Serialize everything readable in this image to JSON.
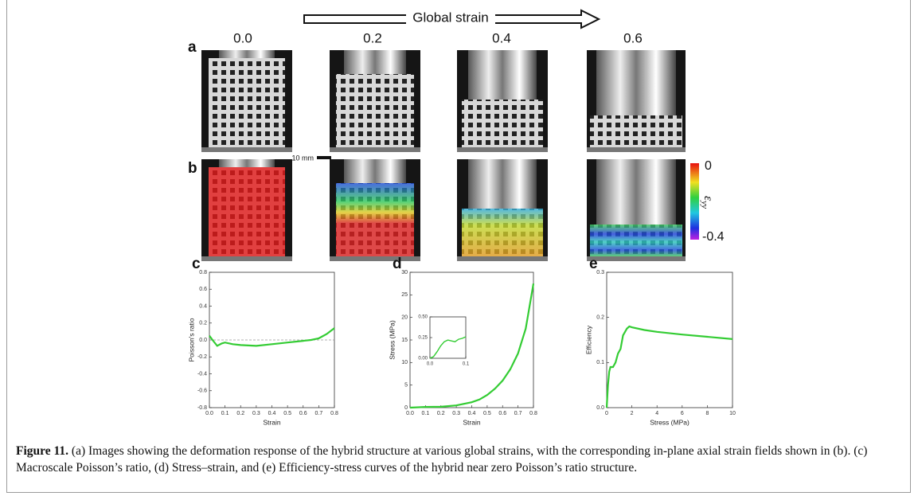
{
  "figure": {
    "arrow_label": "Global strain",
    "strain_labels": [
      "0.0",
      "0.2",
      "0.4",
      "0.6"
    ],
    "row_labels": [
      "a",
      "b"
    ],
    "scale_bar": "10 mm",
    "colorbar": {
      "max_label": "0",
      "min_label": "-0.4",
      "symbol": "ε",
      "subscript": "yy"
    }
  },
  "chart_data": [
    {
      "type": "line",
      "label": "c",
      "xlabel": "Strain",
      "ylabel": "Poisson's ratio",
      "color": "#33cc33",
      "xlim": [
        0,
        0.8
      ],
      "ylim": [
        -0.8,
        0.8
      ],
      "xticks": [
        {
          "value": 0,
          "label": "0.0"
        },
        0.1,
        0.2,
        0.3,
        0.4,
        0.5,
        0.6,
        0.7,
        0.8
      ],
      "yticks": [
        -0.8,
        -0.6,
        -0.4,
        -0.2,
        {
          "value": 0,
          "label": "0.0"
        },
        0.2,
        0.4,
        0.6,
        0.8
      ],
      "hline": 0,
      "x": [
        0,
        0.02,
        0.05,
        0.08,
        0.1,
        0.15,
        0.2,
        0.3,
        0.4,
        0.5,
        0.6,
        0.65,
        0.7,
        0.75,
        0.8
      ],
      "values": [
        0.05,
        0.0,
        -0.07,
        -0.04,
        -0.03,
        -0.05,
        -0.06,
        -0.07,
        -0.05,
        -0.03,
        -0.01,
        0.0,
        0.02,
        0.07,
        0.14
      ]
    },
    {
      "type": "line",
      "label": "d",
      "xlabel": "Strain",
      "ylabel": "Stress (MPa)",
      "color": "#33cc33",
      "xlim": [
        0,
        0.8
      ],
      "ylim": [
        0,
        30
      ],
      "xticks": [
        {
          "value": 0,
          "label": "0.0"
        },
        0.1,
        0.2,
        0.3,
        0.4,
        0.5,
        0.6,
        0.7,
        0.8
      ],
      "yticks": [
        0,
        5,
        10,
        15,
        20,
        25,
        30
      ],
      "x": [
        0,
        0.1,
        0.2,
        0.3,
        0.4,
        0.45,
        0.5,
        0.55,
        0.6,
        0.65,
        0.7,
        0.75,
        0.8
      ],
      "values": [
        0,
        0.15,
        0.2,
        0.5,
        1.2,
        1.8,
        2.8,
        4.2,
        6,
        8.5,
        12,
        17.5,
        27.5
      ],
      "inset": {
        "type": "line",
        "color": "#33cc33",
        "xlim": [
          0,
          0.1
        ],
        "ylim": [
          0,
          0.5
        ],
        "xticks": [
          {
            "value": 0,
            "label": "0.0"
          },
          0.1
        ],
        "yticks": [
          {
            "value": 0,
            "label": "0.00"
          },
          0.25,
          {
            "value": 0.5,
            "label": "0.50"
          }
        ],
        "x": [
          0,
          0.01,
          0.02,
          0.03,
          0.04,
          0.05,
          0.06,
          0.07,
          0.08,
          0.09,
          0.1
        ],
        "values": [
          0,
          0.02,
          0.08,
          0.15,
          0.2,
          0.22,
          0.21,
          0.2,
          0.23,
          0.24,
          0.26
        ]
      }
    },
    {
      "type": "line",
      "label": "e",
      "xlabel": "Stress (MPa)",
      "ylabel": "Efficiency",
      "color": "#33cc33",
      "xlim": [
        0,
        10
      ],
      "ylim": [
        0,
        0.3
      ],
      "xticks": [
        0,
        2,
        4,
        6,
        8,
        10
      ],
      "yticks": [
        {
          "value": 0,
          "label": "0.0"
        },
        0.1,
        0.2,
        0.3
      ],
      "x": [
        0,
        0.1,
        0.2,
        0.3,
        0.5,
        0.7,
        0.9,
        1.1,
        1.3,
        1.6,
        1.8,
        2,
        3,
        4,
        6,
        8,
        10
      ],
      "values": [
        0,
        0.05,
        0.08,
        0.09,
        0.09,
        0.1,
        0.12,
        0.13,
        0.16,
        0.175,
        0.18,
        0.178,
        0.172,
        0.168,
        0.162,
        0.157,
        0.152
      ]
    }
  ],
  "caption": {
    "label": "Figure 11.",
    "text": " (a) Images showing the deformation response of the hybrid structure at various global strains, with the corresponding in-plane axial strain fields shown in (b). (c) Macroscale Poisson’s ratio, (d) Stress–strain, and (e) Efficiency-stress curves of the hybrid near zero Poisson’s ratio structure."
  }
}
